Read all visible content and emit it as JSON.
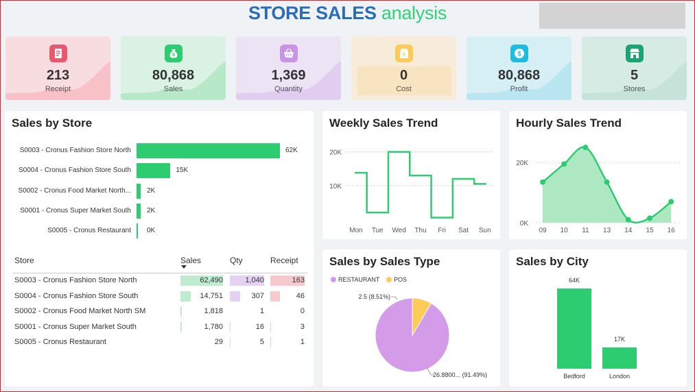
{
  "header": {
    "title_bold": "STORE SALES",
    "title_light": "analysis"
  },
  "colors": {
    "accent_green": "#2ecc71",
    "title_blue": "#2b6cb8",
    "pie_restaurant": "#d49be8",
    "pie_pos": "#fdcb58"
  },
  "kpis": [
    {
      "value": "213",
      "label": "Receipt",
      "icon": "receipt-icon",
      "bg": "#f7dde0",
      "spark": "#f8c1c8",
      "iconbg": "#e8596e"
    },
    {
      "value": "80,868",
      "label": "Sales",
      "icon": "money-bag-icon",
      "bg": "#d9f2e3",
      "spark": "#b7e9c9",
      "iconbg": "#2ecc71"
    },
    {
      "value": "1,369",
      "label": "Quantity",
      "icon": "basket-icon",
      "bg": "#ece3f4",
      "spark": "#e0cdf0",
      "iconbg": "#c993e6"
    },
    {
      "value": "0",
      "label": "Cost",
      "icon": "price-tag-icon",
      "bg": "#f6ecd9",
      "spark": "#f6e3c1",
      "iconbg": "#fdcb58"
    },
    {
      "value": "80,868",
      "label": "Profit",
      "icon": "dollar-coin-icon",
      "bg": "#d5eff5",
      "spark": "#b9e6f1",
      "iconbg": "#1dbde2"
    },
    {
      "value": "5",
      "label": "Stores",
      "icon": "store-icon",
      "bg": "#d6ebe4",
      "spark": "#c6e3d9",
      "iconbg": "#1ba374"
    }
  ],
  "sales_by_store": {
    "title": "Sales by Store",
    "chart_data": {
      "type": "bar",
      "categories": [
        "S0003 - Cronus Fashion Store North",
        "S0004 - Cronus Fashion Store South",
        "S0002 - Cronus Food Market North...",
        "S0001 - Cronus Super Market South",
        "S0005 - Cronus Restaurant"
      ],
      "values": [
        62490,
        14751,
        1818,
        1780,
        29
      ],
      "labels": [
        "62K",
        "15K",
        "2K",
        "2K",
        "0K"
      ]
    }
  },
  "table": {
    "headers": [
      "Store",
      "Sales",
      "Qty",
      "Receipt"
    ],
    "rows": [
      [
        "S0003 - Cronus Fashion Store North",
        "62,490",
        "1,040",
        "163"
      ],
      [
        "S0004 - Cronus Fashion Store South",
        "14,751",
        "307",
        "46"
      ],
      [
        "S0002 - Cronus Food Market North SM",
        "1,818",
        "1",
        "0"
      ],
      [
        "S0001 - Cronus Super Market South",
        "1,780",
        "16",
        "3"
      ],
      [
        "S0005 - Cronus Restaurant",
        "29",
        "5",
        "1"
      ]
    ],
    "sales": [
      62490,
      14751,
      1818,
      1780,
      29
    ],
    "qty": [
      1040,
      307,
      1,
      16,
      5
    ],
    "receipt": [
      163,
      46,
      0,
      3,
      1
    ]
  },
  "weekly": {
    "title": "Weekly Sales Trend",
    "chart_data": {
      "type": "line",
      "categories": [
        "Mon",
        "Tue",
        "Wed",
        "Thu",
        "Fri",
        "Sat",
        "Sun"
      ],
      "values": [
        13800,
        2000,
        20000,
        13000,
        500,
        12000,
        10500
      ],
      "y_ticks": [
        "20K",
        "10K"
      ],
      "y_tick_values": [
        20000,
        10000
      ],
      "ylim": [
        0,
        24000
      ]
    }
  },
  "hourly": {
    "title": "Hourly Sales Trend",
    "chart_data": {
      "type": "area",
      "categories": [
        "09",
        "10",
        "11",
        "13",
        "14",
        "15",
        "16"
      ],
      "values": [
        13500,
        19500,
        25000,
        13500,
        1000,
        1500,
        7000
      ],
      "y_ticks": [
        "20K",
        "0K"
      ],
      "y_tick_values": [
        20000,
        0
      ],
      "ylim": [
        0,
        28000
      ]
    }
  },
  "sales_type": {
    "title": "Sales by Sales Type",
    "chart_data": {
      "type": "pie",
      "series": [
        {
          "name": "RESTAURANT",
          "value": 26.88,
          "percent": 91.49,
          "label": "26.8800... (91.49%)"
        },
        {
          "name": "POS",
          "value": 2.5,
          "percent": 8.51,
          "label": "2.5 (8.51%)"
        }
      ]
    }
  },
  "city": {
    "title": "Sales by City",
    "chart_data": {
      "type": "bar",
      "categories": [
        "Bedford",
        "London"
      ],
      "values": [
        64000,
        17000
      ],
      "labels": [
        "64K",
        "17K"
      ]
    }
  }
}
